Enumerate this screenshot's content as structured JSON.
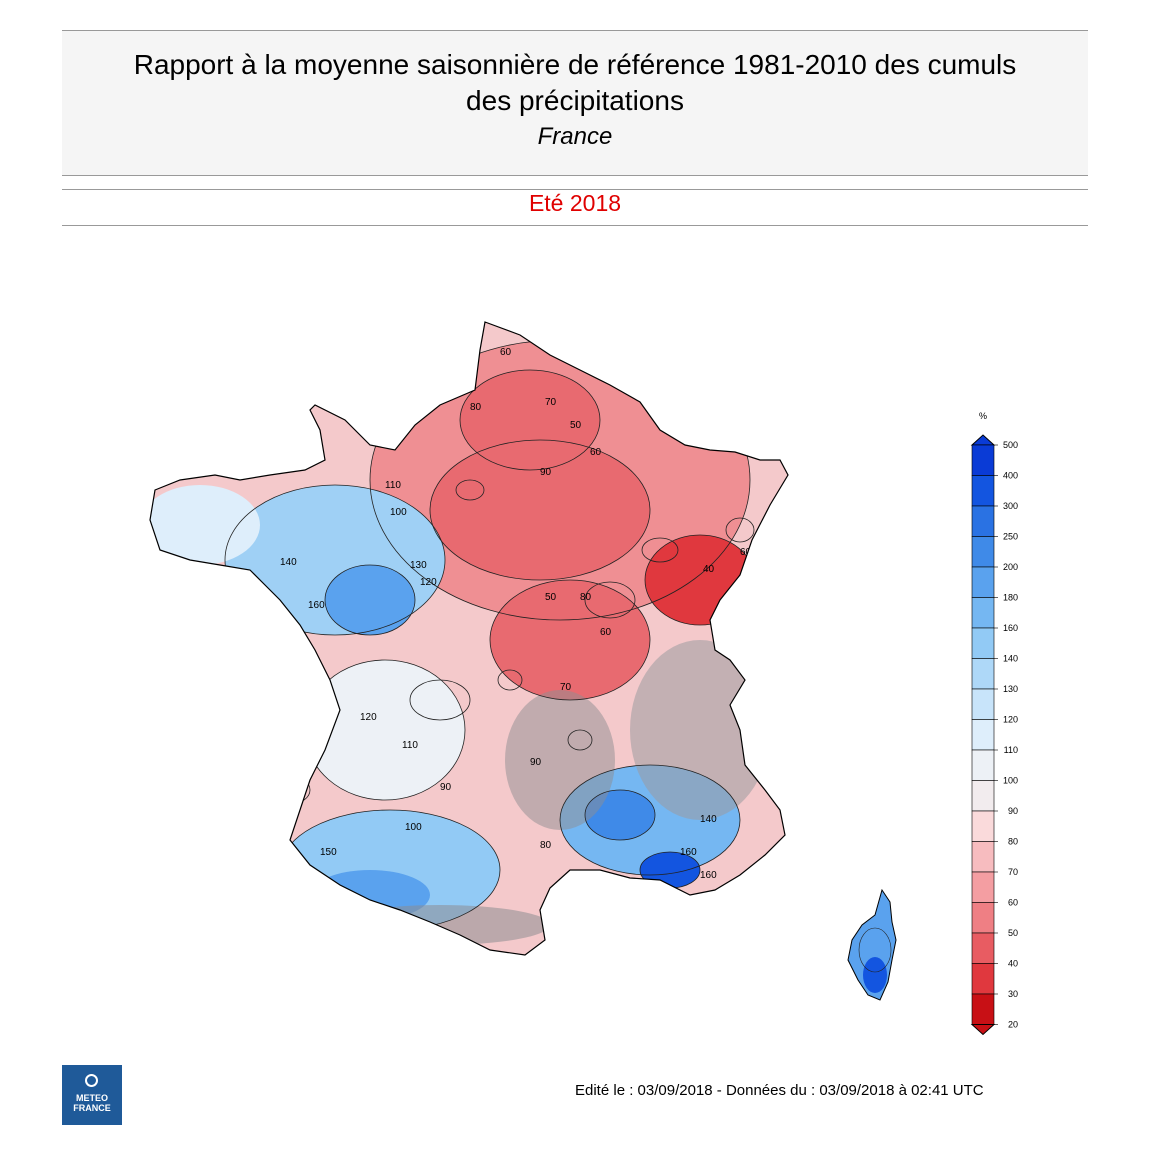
{
  "header": {
    "title_line1": "Rapport à la moyenne saisonnière de référence 1981-2010 des cumuls",
    "title_line2": "des précipitations",
    "subtitle": "France",
    "season": "Eté 2018"
  },
  "legend": {
    "unit": "%",
    "levels": [
      "500",
      "400",
      "300",
      "250",
      "200",
      "180",
      "160",
      "140",
      "130",
      "120",
      "110",
      "100",
      "90",
      "80",
      "70",
      "60",
      "50",
      "40",
      "30",
      "20"
    ],
    "colors": [
      "#0a3bd6",
      "#1355e0",
      "#2a72e3",
      "#3f8ae8",
      "#5aa2ee",
      "#75b7f2",
      "#92caf5",
      "#aed8f8",
      "#c8e4fa",
      "#deeefb",
      "#edf1f6",
      "#f2ecee",
      "#fadadb",
      "#f7bcbf",
      "#f49ea2",
      "#ef7f84",
      "#e85c62",
      "#e0383e",
      "#c81015"
    ]
  },
  "map": {
    "contour_labels": [
      {
        "text": "60"
      },
      {
        "text": "80"
      },
      {
        "text": "70"
      },
      {
        "text": "50"
      },
      {
        "text": "60"
      },
      {
        "text": "90"
      },
      {
        "text": "110"
      },
      {
        "text": "100"
      },
      {
        "text": "140"
      },
      {
        "text": "160"
      },
      {
        "text": "130"
      },
      {
        "text": "120"
      },
      {
        "text": "50"
      },
      {
        "text": "60"
      },
      {
        "text": "80"
      },
      {
        "text": "70"
      },
      {
        "text": "40"
      },
      {
        "text": "60"
      },
      {
        "text": "110"
      },
      {
        "text": "120"
      },
      {
        "text": "90"
      },
      {
        "text": "100"
      },
      {
        "text": "140"
      },
      {
        "text": "150"
      },
      {
        "text": "160"
      },
      {
        "text": "100"
      },
      {
        "text": "80"
      },
      {
        "text": "140"
      },
      {
        "text": "160"
      },
      {
        "text": "90"
      }
    ]
  },
  "logo": {
    "line1": "METEO",
    "line2": "FRANCE"
  },
  "footer": {
    "text": "Edité le : 03/09/2018 - Données du : 03/09/2018 à 02:41 UTC"
  }
}
